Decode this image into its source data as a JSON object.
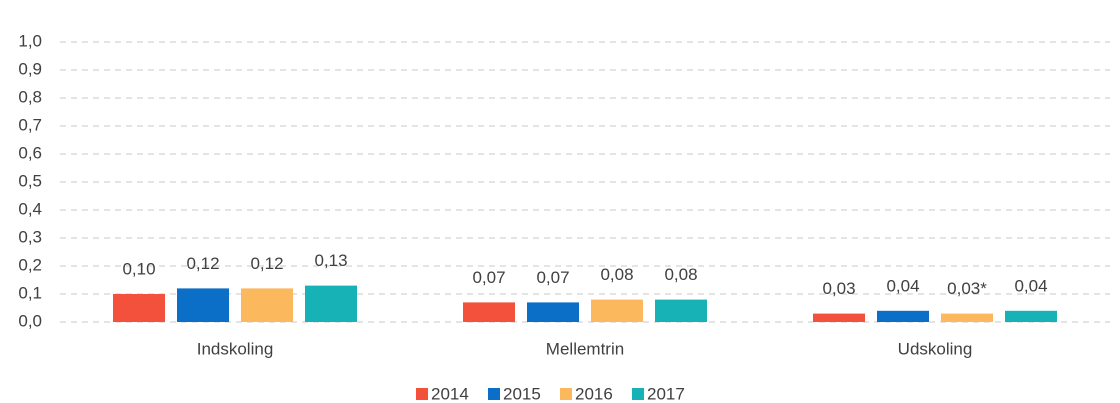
{
  "chart_data": {
    "type": "bar",
    "categories": [
      "Indskoling",
      "Mellemtrin",
      "Udskoling"
    ],
    "series": [
      {
        "name": "2014",
        "color": "#f4513c",
        "values": [
          0.1,
          0.07,
          0.03
        ],
        "value_labels": [
          "0,10",
          "0,07",
          "0,03"
        ]
      },
      {
        "name": "2015",
        "color": "#0b6fc8",
        "values": [
          0.12,
          0.07,
          0.04
        ],
        "value_labels": [
          "0,12",
          "0,07",
          "0,04"
        ]
      },
      {
        "name": "2016",
        "color": "#fbb85c",
        "values": [
          0.12,
          0.08,
          0.03
        ],
        "value_labels": [
          "0,12",
          "0,08",
          "0,03*"
        ]
      },
      {
        "name": "2017",
        "color": "#17b2b6",
        "values": [
          0.13,
          0.08,
          0.04
        ],
        "value_labels": [
          "0,13",
          "0,08",
          "0,04"
        ]
      }
    ],
    "ylim": [
      0,
      1
    ],
    "yticks": [
      {
        "value": 0,
        "label": "0,0"
      },
      {
        "value": 0.1,
        "label": "0,1"
      },
      {
        "value": 0.2,
        "label": "0,2"
      },
      {
        "value": 0.3,
        "label": "0,3"
      },
      {
        "value": 0.4,
        "label": "0,4"
      },
      {
        "value": 0.5,
        "label": "0,5"
      },
      {
        "value": 0.6,
        "label": "0,6"
      },
      {
        "value": 0.7,
        "label": "0,7"
      },
      {
        "value": 0.8,
        "label": "0,8"
      },
      {
        "value": 0.9,
        "label": "0,9"
      },
      {
        "value": 1,
        "label": "1,0"
      }
    ],
    "grid": true,
    "legend": "bottom"
  }
}
